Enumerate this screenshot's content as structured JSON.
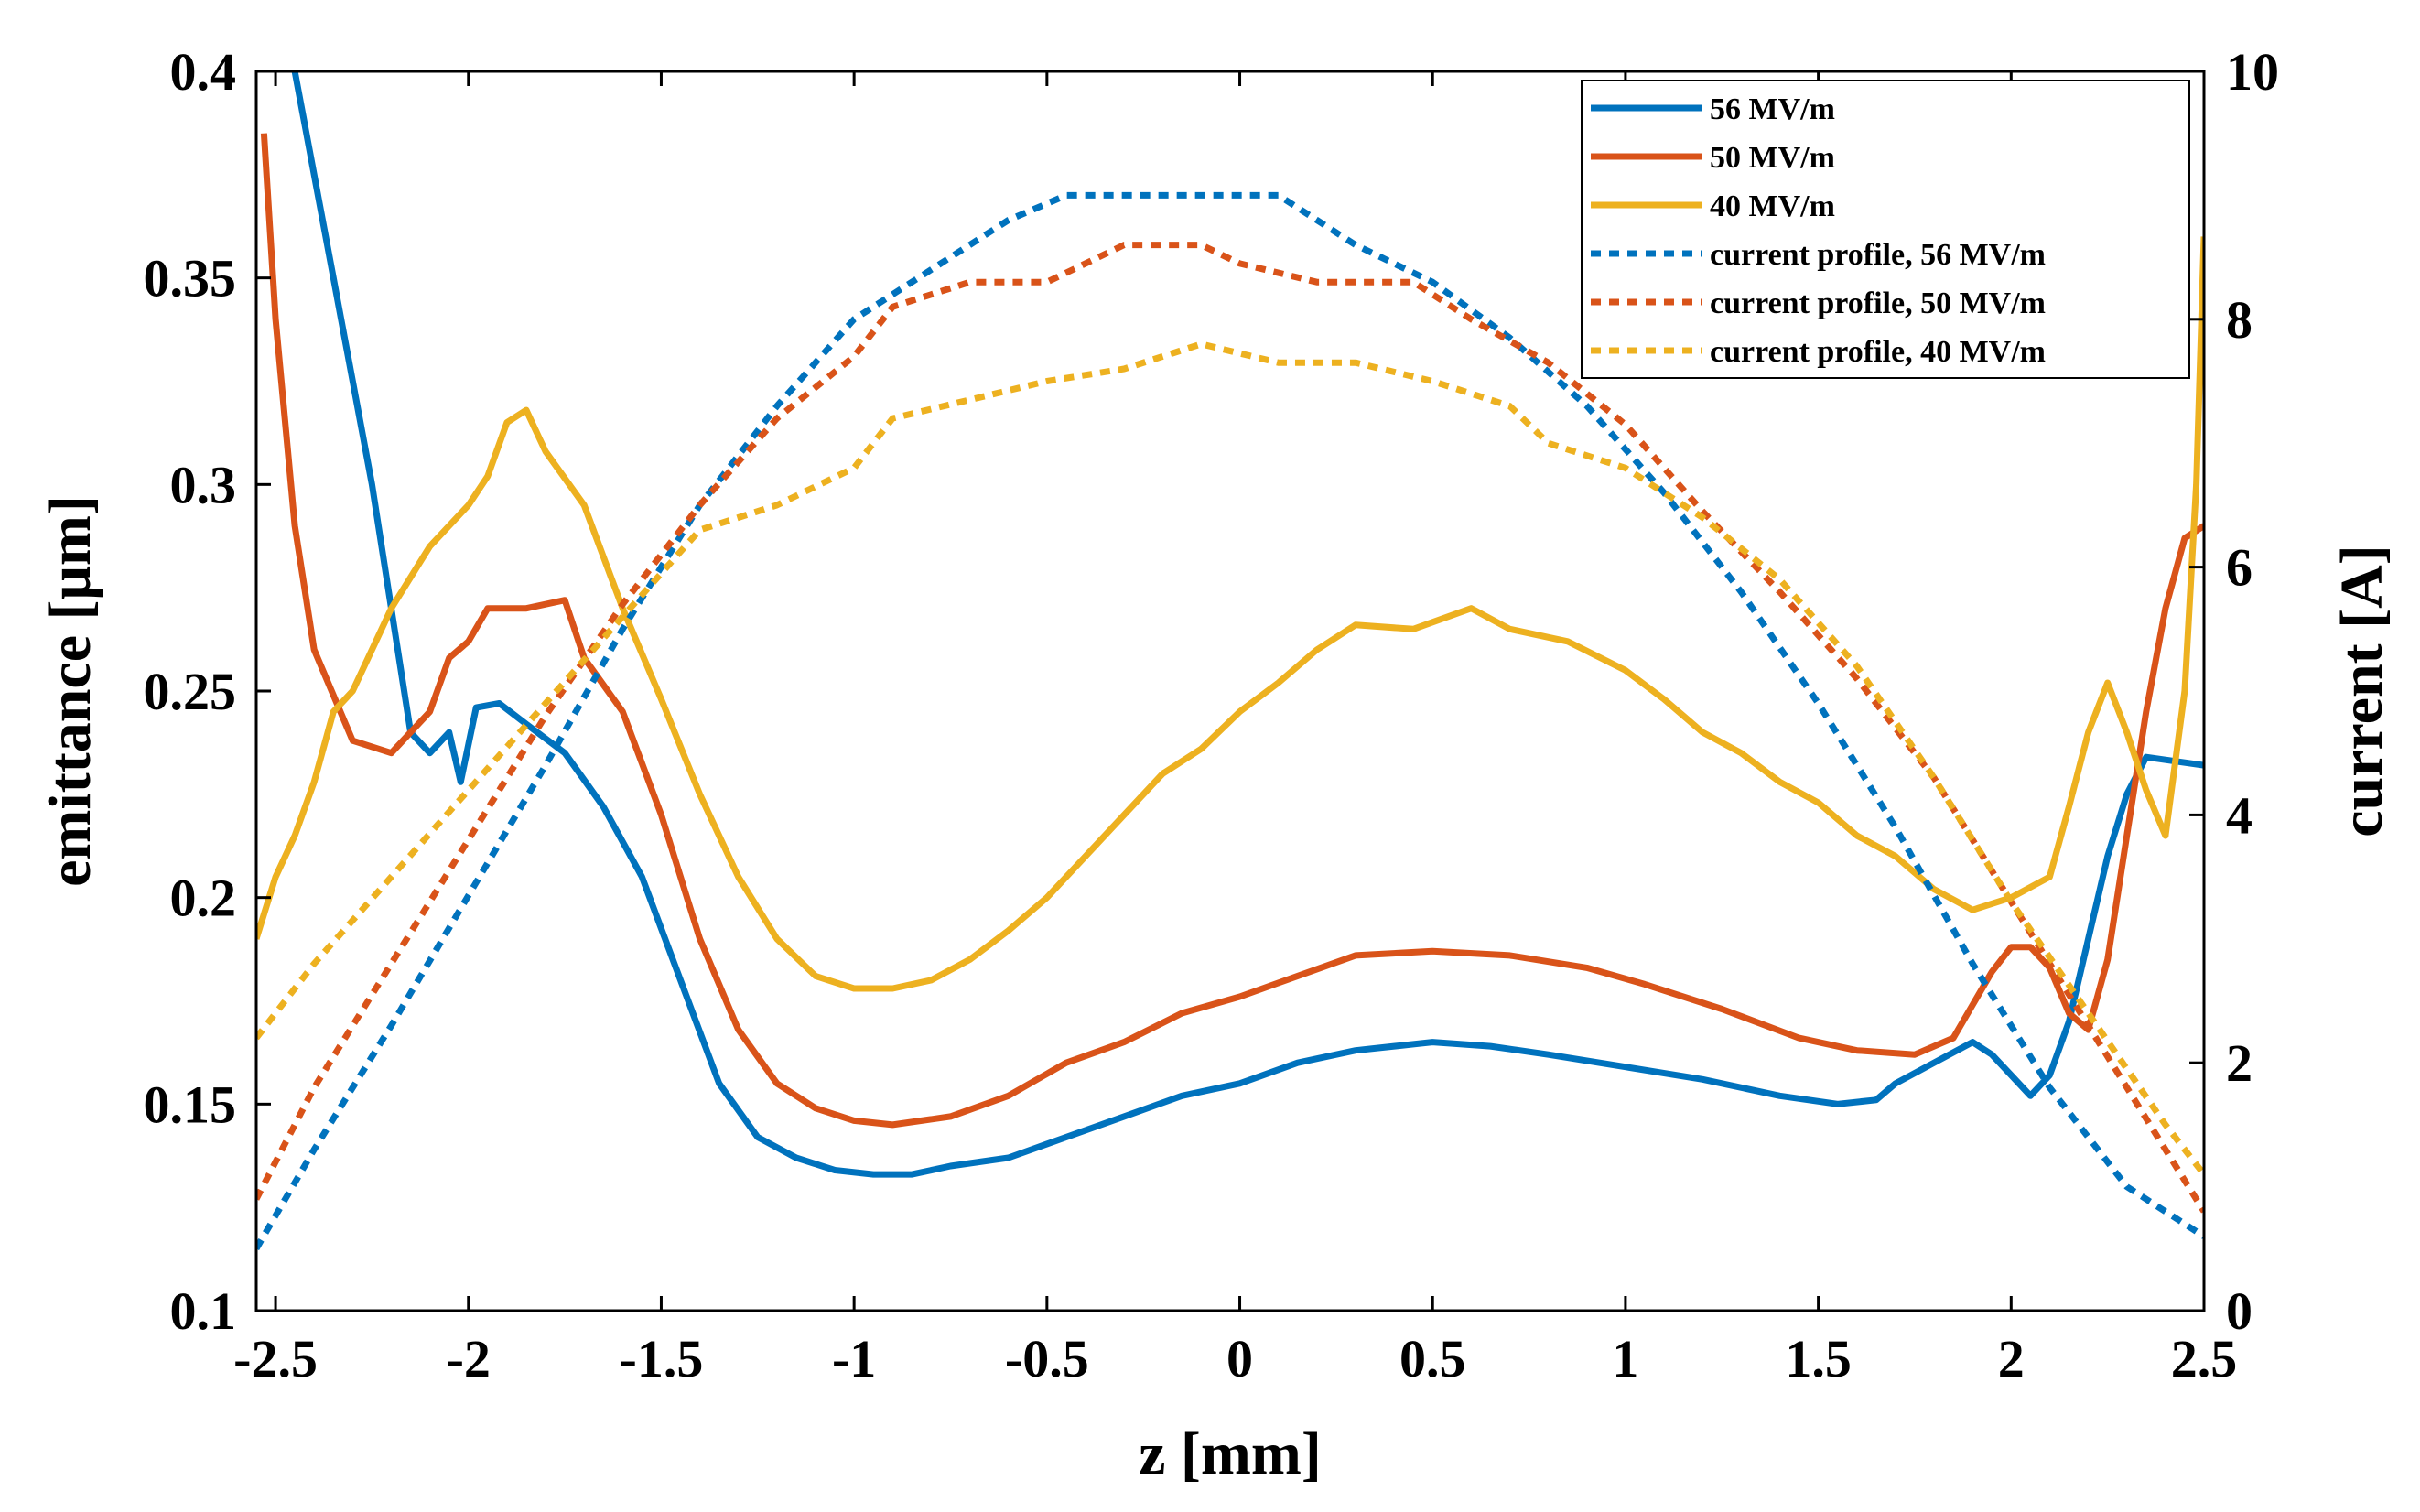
{
  "chart_data": {
    "type": "line",
    "title": "",
    "xlabel": "z [mm]",
    "ylabel": "emittance [μm]",
    "ylabel_right": "current [A]",
    "xlim": [
      -2.55,
      2.5
    ],
    "ylim": [
      0.1,
      0.4
    ],
    "ylim_right": [
      0,
      10
    ],
    "x_ticks": [
      -2.5,
      -2,
      -1.5,
      -1,
      -0.5,
      0,
      0.5,
      1,
      1.5,
      2,
      2.5
    ],
    "x_tick_labels": [
      "-2.5",
      "-2",
      "-1.5",
      "-1",
      "-0.5",
      "0",
      "0.5",
      "1",
      "1.5",
      "2",
      "2.5"
    ],
    "y_ticks": [
      0.1,
      0.15,
      0.2,
      0.25,
      0.3,
      0.35,
      0.4
    ],
    "y_tick_labels": [
      "0.1",
      "0.15",
      "0.2",
      "0.25",
      "0.3",
      "0.35",
      "0.4"
    ],
    "y_right_ticks": [
      0,
      2,
      4,
      6,
      8,
      10
    ],
    "y_right_tick_labels": [
      "0",
      "2",
      "4",
      "6",
      "8",
      "10"
    ],
    "grid": false,
    "legend_position": "top-right",
    "colors": {
      "blue": "#0072BD",
      "orange": "#D95319",
      "yellow": "#EDB120"
    },
    "series": [
      {
        "name": "56 MV/m",
        "axis": "left",
        "style": "solid",
        "color": "#0072BD",
        "points": [
          [
            -2.45,
            0.4
          ],
          [
            -2.35,
            0.35
          ],
          [
            -2.25,
            0.3
          ],
          [
            -2.15,
            0.24
          ],
          [
            -2.1,
            0.235
          ],
          [
            -2.05,
            0.24
          ],
          [
            -2.02,
            0.228
          ],
          [
            -1.98,
            0.246
          ],
          [
            -1.92,
            0.247
          ],
          [
            -1.85,
            0.242
          ],
          [
            -1.75,
            0.235
          ],
          [
            -1.65,
            0.222
          ],
          [
            -1.55,
            0.205
          ],
          [
            -1.45,
            0.18
          ],
          [
            -1.35,
            0.155
          ],
          [
            -1.25,
            0.142
          ],
          [
            -1.15,
            0.137
          ],
          [
            -1.05,
            0.134
          ],
          [
            -0.95,
            0.133
          ],
          [
            -0.85,
            0.133
          ],
          [
            -0.75,
            0.135
          ],
          [
            -0.6,
            0.137
          ],
          [
            -0.45,
            0.142
          ],
          [
            -0.3,
            0.147
          ],
          [
            -0.15,
            0.152
          ],
          [
            0.0,
            0.155
          ],
          [
            0.15,
            0.16
          ],
          [
            0.3,
            0.163
          ],
          [
            0.5,
            0.165
          ],
          [
            0.65,
            0.164
          ],
          [
            0.8,
            0.162
          ],
          [
            1.0,
            0.159
          ],
          [
            1.2,
            0.156
          ],
          [
            1.4,
            0.152
          ],
          [
            1.55,
            0.15
          ],
          [
            1.65,
            0.151
          ],
          [
            1.7,
            0.155
          ],
          [
            1.8,
            0.16
          ],
          [
            1.9,
            0.165
          ],
          [
            1.95,
            0.162
          ],
          [
            2.0,
            0.157
          ],
          [
            2.05,
            0.152
          ],
          [
            2.1,
            0.157
          ],
          [
            2.15,
            0.17
          ],
          [
            2.2,
            0.19
          ],
          [
            2.25,
            0.21
          ],
          [
            2.3,
            0.225
          ],
          [
            2.35,
            0.234
          ],
          [
            2.5,
            0.232
          ]
        ]
      },
      {
        "name": "50 MV/m",
        "axis": "left",
        "style": "solid",
        "color": "#D95319",
        "points": [
          [
            -2.53,
            0.385
          ],
          [
            -2.5,
            0.34
          ],
          [
            -2.45,
            0.29
          ],
          [
            -2.4,
            0.26
          ],
          [
            -2.3,
            0.238
          ],
          [
            -2.2,
            0.235
          ],
          [
            -2.1,
            0.245
          ],
          [
            -2.05,
            0.258
          ],
          [
            -2.0,
            0.262
          ],
          [
            -1.95,
            0.27
          ],
          [
            -1.85,
            0.27
          ],
          [
            -1.75,
            0.272
          ],
          [
            -1.7,
            0.258
          ],
          [
            -1.6,
            0.245
          ],
          [
            -1.5,
            0.22
          ],
          [
            -1.4,
            0.19
          ],
          [
            -1.3,
            0.168
          ],
          [
            -1.2,
            0.155
          ],
          [
            -1.1,
            0.149
          ],
          [
            -1.0,
            0.146
          ],
          [
            -0.9,
            0.145
          ],
          [
            -0.75,
            0.147
          ],
          [
            -0.6,
            0.152
          ],
          [
            -0.45,
            0.16
          ],
          [
            -0.3,
            0.165
          ],
          [
            -0.15,
            0.172
          ],
          [
            0.0,
            0.176
          ],
          [
            0.15,
            0.181
          ],
          [
            0.3,
            0.186
          ],
          [
            0.5,
            0.187
          ],
          [
            0.7,
            0.186
          ],
          [
            0.9,
            0.183
          ],
          [
            1.05,
            0.179
          ],
          [
            1.25,
            0.173
          ],
          [
            1.45,
            0.166
          ],
          [
            1.6,
            0.163
          ],
          [
            1.75,
            0.162
          ],
          [
            1.85,
            0.166
          ],
          [
            1.95,
            0.182
          ],
          [
            2.0,
            0.188
          ],
          [
            2.05,
            0.188
          ],
          [
            2.1,
            0.183
          ],
          [
            2.15,
            0.172
          ],
          [
            2.2,
            0.168
          ],
          [
            2.25,
            0.185
          ],
          [
            2.3,
            0.215
          ],
          [
            2.35,
            0.245
          ],
          [
            2.4,
            0.27
          ],
          [
            2.45,
            0.287
          ],
          [
            2.5,
            0.29
          ]
        ]
      },
      {
        "name": "40 MV/m",
        "axis": "left",
        "style": "solid",
        "color": "#EDB120",
        "points": [
          [
            -2.55,
            0.19
          ],
          [
            -2.5,
            0.205
          ],
          [
            -2.45,
            0.215
          ],
          [
            -2.4,
            0.228
          ],
          [
            -2.35,
            0.245
          ],
          [
            -2.3,
            0.25
          ],
          [
            -2.25,
            0.26
          ],
          [
            -2.2,
            0.27
          ],
          [
            -2.1,
            0.285
          ],
          [
            -2.0,
            0.295
          ],
          [
            -1.95,
            0.302
          ],
          [
            -1.9,
            0.315
          ],
          [
            -1.85,
            0.318
          ],
          [
            -1.8,
            0.308
          ],
          [
            -1.7,
            0.295
          ],
          [
            -1.6,
            0.27
          ],
          [
            -1.5,
            0.248
          ],
          [
            -1.4,
            0.225
          ],
          [
            -1.3,
            0.205
          ],
          [
            -1.2,
            0.19
          ],
          [
            -1.1,
            0.181
          ],
          [
            -1.0,
            0.178
          ],
          [
            -0.9,
            0.178
          ],
          [
            -0.8,
            0.18
          ],
          [
            -0.7,
            0.185
          ],
          [
            -0.6,
            0.192
          ],
          [
            -0.5,
            0.2
          ],
          [
            -0.4,
            0.21
          ],
          [
            -0.3,
            0.22
          ],
          [
            -0.2,
            0.23
          ],
          [
            -0.1,
            0.236
          ],
          [
            0.0,
            0.245
          ],
          [
            0.1,
            0.252
          ],
          [
            0.2,
            0.26
          ],
          [
            0.3,
            0.266
          ],
          [
            0.45,
            0.265
          ],
          [
            0.6,
            0.27
          ],
          [
            0.7,
            0.265
          ],
          [
            0.85,
            0.262
          ],
          [
            1.0,
            0.255
          ],
          [
            1.1,
            0.248
          ],
          [
            1.2,
            0.24
          ],
          [
            1.3,
            0.235
          ],
          [
            1.4,
            0.228
          ],
          [
            1.5,
            0.223
          ],
          [
            1.6,
            0.215
          ],
          [
            1.7,
            0.21
          ],
          [
            1.8,
            0.202
          ],
          [
            1.9,
            0.197
          ],
          [
            2.0,
            0.2
          ],
          [
            2.1,
            0.205
          ],
          [
            2.15,
            0.222
          ],
          [
            2.2,
            0.24
          ],
          [
            2.25,
            0.252
          ],
          [
            2.3,
            0.24
          ],
          [
            2.35,
            0.226
          ],
          [
            2.4,
            0.215
          ],
          [
            2.45,
            0.25
          ],
          [
            2.48,
            0.3
          ],
          [
            2.5,
            0.36
          ]
        ]
      },
      {
        "name": "current profile, 56 MV/m",
        "axis": "right",
        "style": "dotted",
        "color": "#0072BD",
        "points": [
          [
            -2.55,
            0.5
          ],
          [
            -2.4,
            1.3
          ],
          [
            -2.2,
            2.3
          ],
          [
            -2.0,
            3.35
          ],
          [
            -1.8,
            4.4
          ],
          [
            -1.6,
            5.5
          ],
          [
            -1.4,
            6.5
          ],
          [
            -1.2,
            7.3
          ],
          [
            -1.0,
            8.0
          ],
          [
            -0.8,
            8.4
          ],
          [
            -0.6,
            8.8
          ],
          [
            -0.45,
            9.0
          ],
          [
            0.1,
            9.0
          ],
          [
            0.3,
            8.6
          ],
          [
            0.5,
            8.3
          ],
          [
            0.7,
            7.85
          ],
          [
            0.9,
            7.3
          ],
          [
            1.1,
            6.6
          ],
          [
            1.3,
            5.8
          ],
          [
            1.5,
            4.9
          ],
          [
            1.7,
            3.9
          ],
          [
            1.9,
            2.8
          ],
          [
            2.1,
            1.8
          ],
          [
            2.3,
            1.0
          ],
          [
            2.5,
            0.6
          ]
        ]
      },
      {
        "name": "current profile, 50 MV/m",
        "axis": "right",
        "style": "dotted",
        "color": "#D95319",
        "points": [
          [
            -2.55,
            0.9
          ],
          [
            -2.4,
            1.8
          ],
          [
            -2.2,
            2.8
          ],
          [
            -2.0,
            3.8
          ],
          [
            -1.8,
            4.8
          ],
          [
            -1.6,
            5.7
          ],
          [
            -1.4,
            6.5
          ],
          [
            -1.2,
            7.2
          ],
          [
            -1.0,
            7.7
          ],
          [
            -0.9,
            8.1
          ],
          [
            -0.7,
            8.3
          ],
          [
            -0.5,
            8.3
          ],
          [
            -0.3,
            8.6
          ],
          [
            -0.1,
            8.6
          ],
          [
            0.0,
            8.45
          ],
          [
            0.2,
            8.3
          ],
          [
            0.45,
            8.3
          ],
          [
            0.6,
            8.0
          ],
          [
            0.8,
            7.65
          ],
          [
            1.0,
            7.15
          ],
          [
            1.2,
            6.45
          ],
          [
            1.4,
            5.8
          ],
          [
            1.6,
            5.1
          ],
          [
            1.8,
            4.3
          ],
          [
            2.0,
            3.3
          ],
          [
            2.2,
            2.3
          ],
          [
            2.4,
            1.3
          ],
          [
            2.5,
            0.8
          ]
        ]
      },
      {
        "name": "current profile, 40 MV/m",
        "axis": "right",
        "style": "dotted",
        "color": "#EDB120",
        "points": [
          [
            -2.55,
            2.2
          ],
          [
            -2.4,
            2.8
          ],
          [
            -2.2,
            3.5
          ],
          [
            -2.0,
            4.2
          ],
          [
            -1.8,
            4.9
          ],
          [
            -1.6,
            5.6
          ],
          [
            -1.4,
            6.3
          ],
          [
            -1.2,
            6.5
          ],
          [
            -1.0,
            6.8
          ],
          [
            -0.9,
            7.2
          ],
          [
            -0.7,
            7.35
          ],
          [
            -0.5,
            7.5
          ],
          [
            -0.3,
            7.6
          ],
          [
            -0.1,
            7.8
          ],
          [
            0.1,
            7.65
          ],
          [
            0.3,
            7.65
          ],
          [
            0.5,
            7.5
          ],
          [
            0.7,
            7.3
          ],
          [
            0.8,
            7.0
          ],
          [
            1.0,
            6.8
          ],
          [
            1.2,
            6.4
          ],
          [
            1.4,
            5.9
          ],
          [
            1.6,
            5.2
          ],
          [
            1.8,
            4.3
          ],
          [
            2.0,
            3.3
          ],
          [
            2.2,
            2.4
          ],
          [
            2.4,
            1.5
          ],
          [
            2.5,
            1.1
          ]
        ]
      }
    ]
  }
}
